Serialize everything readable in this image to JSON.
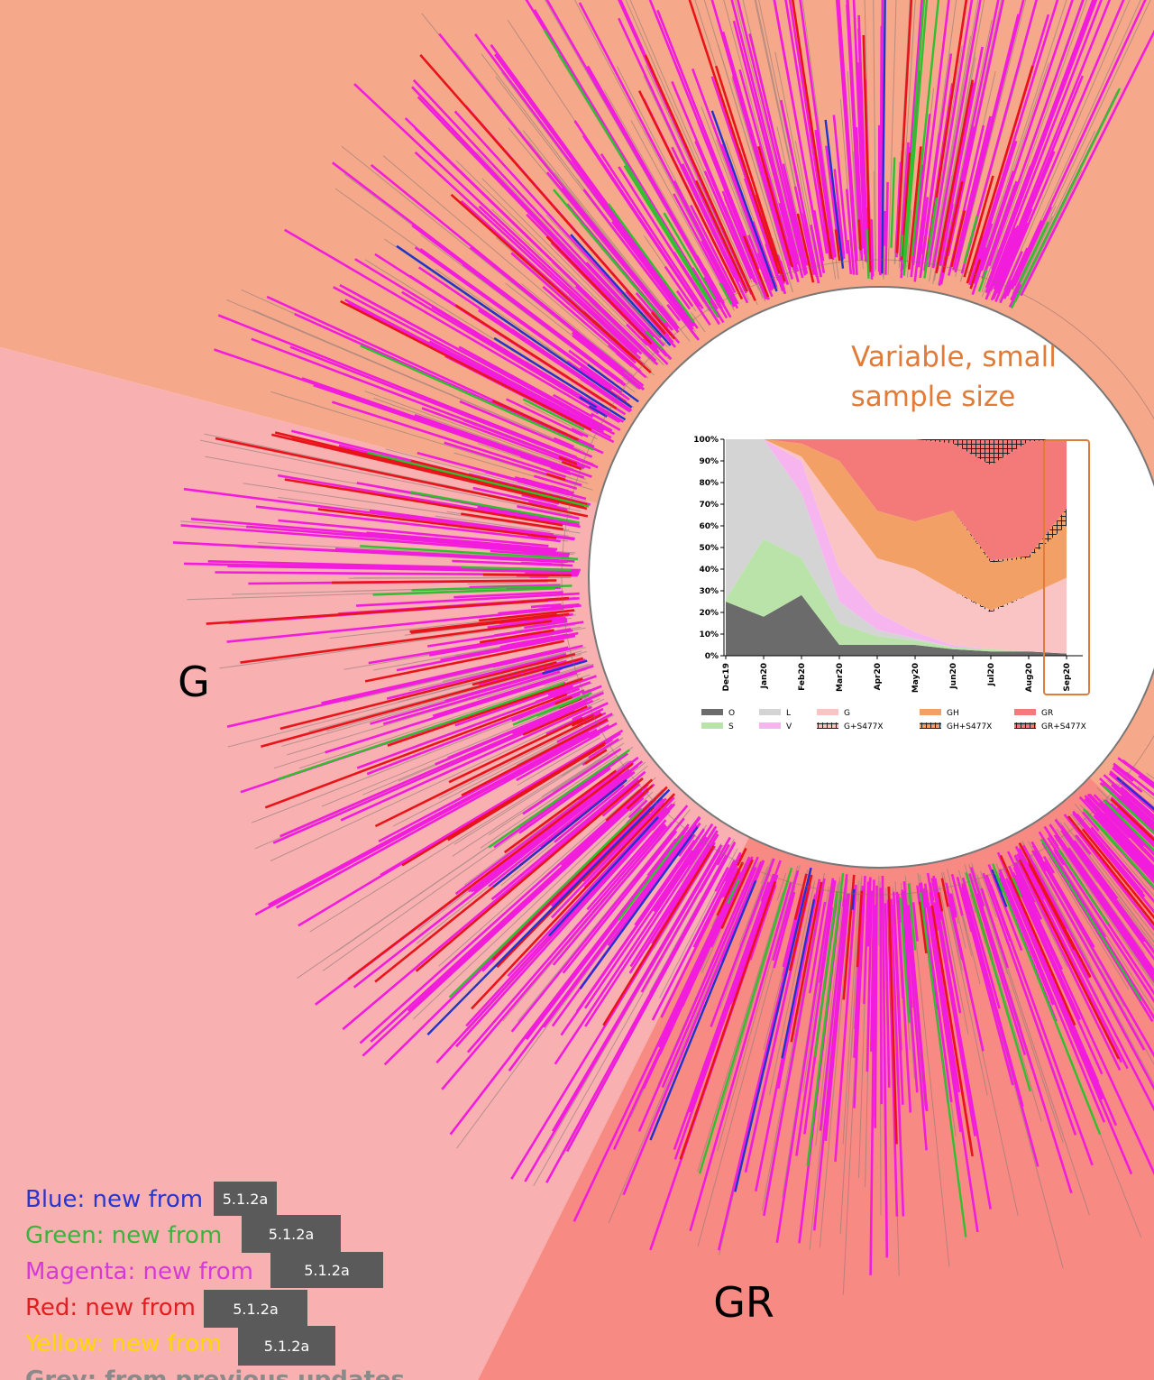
{
  "figure": {
    "clade_labels": [
      "G",
      "GR"
    ],
    "annotation": [
      "Variable, small",
      "sample size"
    ],
    "legend": [
      {
        "text": "Blue: new from",
        "color": "#2a35d0",
        "badge": "5.1.2a"
      },
      {
        "text": "Green: new from",
        "color": "#3cb33c",
        "badge": "5.1.2a"
      },
      {
        "text": "Magenta: new from",
        "color": "#d63ad6",
        "badge": "5.1.2a"
      },
      {
        "text": "Red: new from",
        "color": "#e02020",
        "badge": "5.1.2a"
      },
      {
        "text": "Yellow: new from",
        "color": "#ffd700",
        "badge": "5.1.2a"
      },
      {
        "text": "Grey: from previous updates",
        "color": "#8a8a8a"
      }
    ]
  },
  "chart_data": {
    "type": "stacked-area",
    "categories": [
      "Dec19",
      "Jan20",
      "Feb20",
      "Mar20",
      "Apr20",
      "May20",
      "Jun20",
      "Jul20",
      "Aug20",
      "Sep20"
    ],
    "series": [
      {
        "name": "O",
        "color": "#6b6b6b",
        "values": [
          25,
          18,
          28,
          5,
          5,
          5,
          3,
          2,
          2,
          1
        ]
      },
      {
        "name": "S",
        "color": "#b9e3a8",
        "values": [
          1,
          36,
          17,
          10,
          4,
          2,
          1,
          1,
          0,
          0
        ]
      },
      {
        "name": "L",
        "color": "#d4d4d4",
        "values": [
          74,
          46,
          30,
          10,
          3,
          1,
          0,
          0,
          0,
          0
        ]
      },
      {
        "name": "V",
        "color": "#f7b5f0",
        "values": [
          0,
          0,
          15,
          15,
          8,
          3,
          1,
          0,
          0,
          0
        ]
      },
      {
        "name": "G",
        "color": "#fbc4c4",
        "values": [
          0,
          0,
          2,
          28,
          25,
          29,
          25,
          17,
          26,
          35
        ]
      },
      {
        "name": "G+S477X",
        "color": "#fbc4c4",
        "hatch": true,
        "values": [
          0,
          0,
          0,
          0,
          0,
          0,
          0,
          1,
          0,
          0
        ]
      },
      {
        "name": "GH",
        "color": "#f2a065",
        "values": [
          0,
          0,
          6,
          22,
          22,
          22,
          37,
          22,
          17,
          24
        ]
      },
      {
        "name": "GH+S477X",
        "color": "#f2a065",
        "hatch": true,
        "values": [
          0,
          0,
          0,
          0,
          0,
          0,
          0,
          1,
          1,
          8
        ]
      },
      {
        "name": "GR",
        "color": "#f47a7a",
        "values": [
          0,
          0,
          2,
          10,
          33,
          38,
          31,
          44,
          53,
          32
        ]
      },
      {
        "name": "GR+S477X",
        "color": "#f47a7a",
        "hatch": true,
        "values": [
          0,
          0,
          0,
          0,
          0,
          0,
          2,
          12,
          1,
          0
        ]
      }
    ],
    "ylim": [
      0,
      100
    ],
    "yticks": [
      {
        "value": 0,
        "label": "0%"
      },
      {
        "value": 10,
        "label": "10%"
      },
      {
        "value": 20,
        "label": "20%"
      },
      {
        "value": 30,
        "label": "30%"
      },
      {
        "value": 40,
        "label": "40%"
      },
      {
        "value": 50,
        "label": "50%"
      },
      {
        "value": 60,
        "label": "60%"
      },
      {
        "value": 70,
        "label": "70%"
      },
      {
        "value": 80,
        "label": "80%"
      },
      {
        "value": 90,
        "label": "90%"
      },
      {
        "value": 100,
        "label": "100%"
      }
    ]
  }
}
